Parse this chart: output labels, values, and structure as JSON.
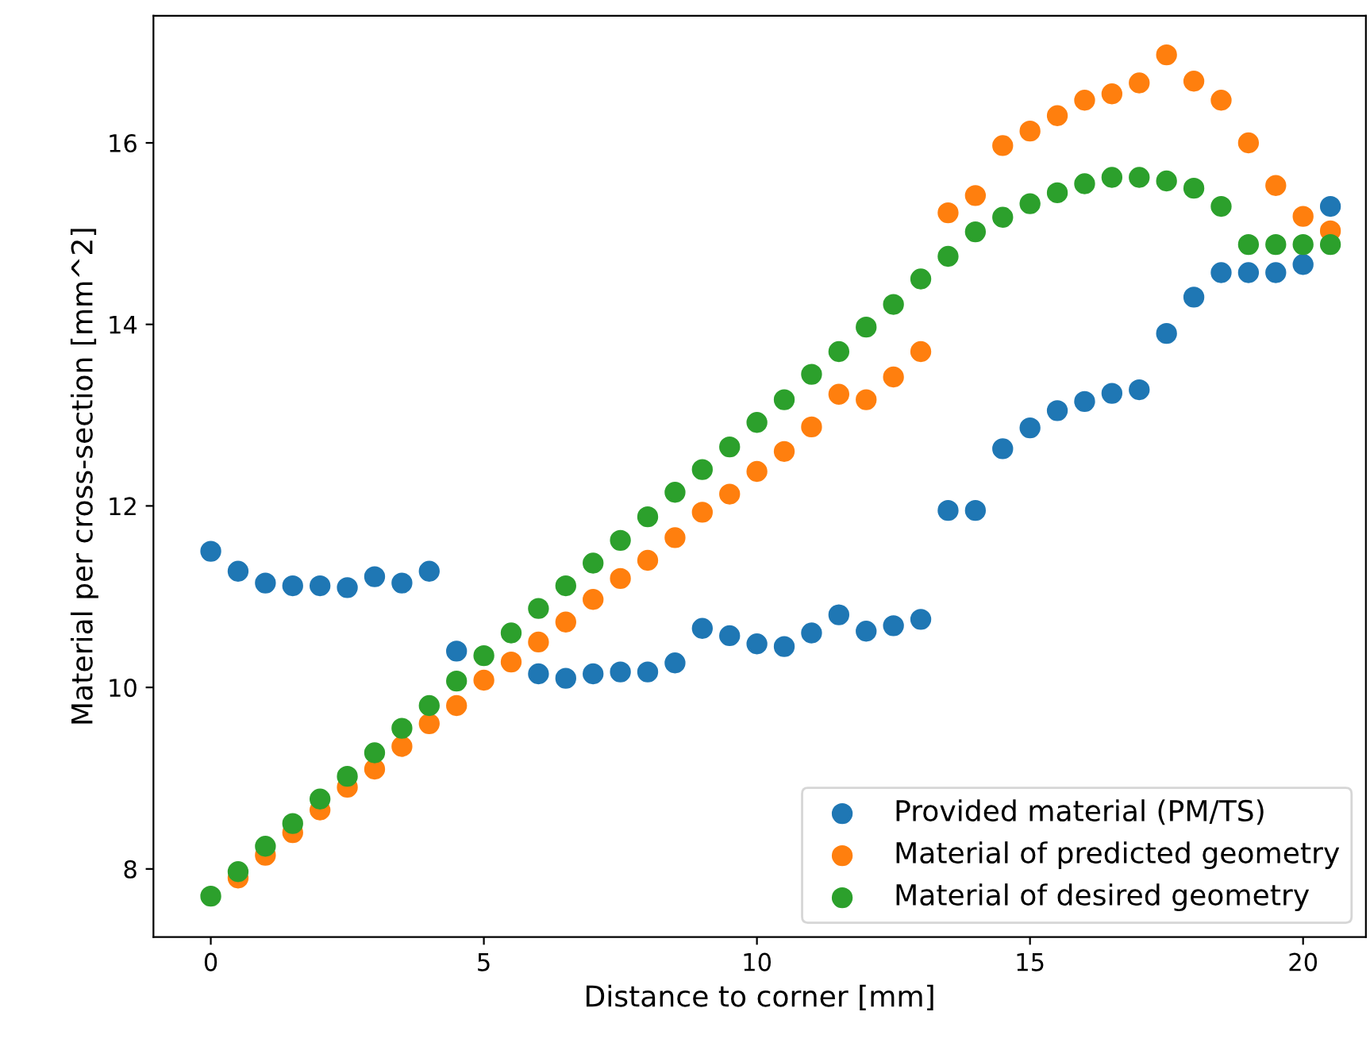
{
  "chart_data": {
    "type": "scatter",
    "xlabel": "Distance to corner [mm]",
    "ylabel": "Material per cross-section [mm^2]",
    "x": [
      0,
      0.5,
      1,
      1.5,
      2,
      2.5,
      3,
      3.5,
      4,
      4.5,
      5,
      5.5,
      6,
      6.5,
      7,
      7.5,
      8,
      8.5,
      9,
      9.5,
      10,
      10.5,
      11,
      11.5,
      12,
      12.5,
      13,
      13.5,
      14,
      14.5,
      15,
      15.5,
      16,
      16.5,
      17,
      17.5,
      18,
      18.5,
      19,
      19.5,
      20,
      20.5
    ],
    "series": [
      {
        "name": "Provided material (PM/TS)",
        "color": "#1f77b4",
        "values": [
          11.5,
          11.28,
          11.15,
          11.12,
          11.12,
          11.1,
          11.22,
          11.15,
          11.28,
          10.4,
          null,
          null,
          10.15,
          10.1,
          10.15,
          10.17,
          10.17,
          10.27,
          10.65,
          10.57,
          10.48,
          10.45,
          10.6,
          10.8,
          10.62,
          10.68,
          10.75,
          11.95,
          11.95,
          12.63,
          12.86,
          13.05,
          13.15,
          13.24,
          13.28,
          13.9,
          14.3,
          14.57,
          14.57,
          14.57,
          14.66,
          15.3
        ]
      },
      {
        "name": "Material of predicted geometry",
        "color": "#ff7f0e",
        "values": [
          null,
          7.9,
          8.15,
          8.4,
          8.65,
          8.9,
          9.1,
          9.35,
          9.6,
          9.8,
          10.08,
          10.28,
          10.5,
          10.72,
          10.97,
          11.2,
          11.4,
          11.65,
          11.93,
          12.13,
          12.38,
          12.6,
          12.87,
          13.23,
          13.17,
          13.42,
          13.7,
          15.23,
          15.42,
          15.97,
          16.13,
          16.3,
          16.47,
          16.54,
          16.66,
          16.97,
          16.68,
          16.47,
          16.0,
          15.53,
          15.19,
          15.03
        ]
      },
      {
        "name": "Material of desired geometry",
        "color": "#2ca02c",
        "values": [
          7.7,
          7.97,
          8.25,
          8.5,
          8.77,
          9.02,
          9.28,
          9.55,
          9.8,
          10.07,
          10.35,
          10.6,
          10.87,
          11.12,
          11.37,
          11.62,
          11.88,
          12.15,
          12.4,
          12.65,
          12.92,
          13.17,
          13.45,
          13.7,
          13.97,
          14.22,
          14.5,
          14.75,
          15.02,
          15.18,
          15.33,
          15.45,
          15.55,
          15.62,
          15.62,
          15.58,
          15.5,
          15.3,
          14.88,
          14.88,
          14.88,
          14.88
        ]
      }
    ],
    "xlim": [
      -1.05,
      21.15
    ],
    "ylim": [
      7.25,
      17.4
    ],
    "xticks": [
      0,
      5,
      10,
      15,
      20
    ],
    "yticks": [
      8,
      10,
      12,
      14,
      16
    ],
    "legend": "lower right",
    "marker": "circle",
    "grid": false
  }
}
